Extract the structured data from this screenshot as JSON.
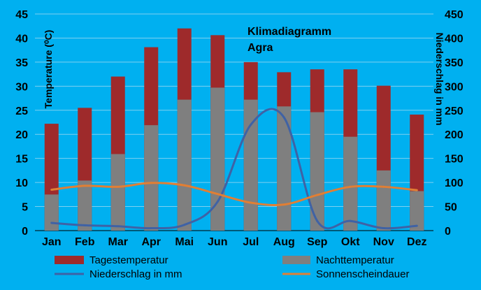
{
  "chart_data": {
    "type": "bar",
    "title": "Klimadiagramm",
    "subtitle": "Agra",
    "categories": [
      "Jan",
      "Feb",
      "Mar",
      "Apr",
      "Mai",
      "Jun",
      "Jul",
      "Aug",
      "Sep",
      "Okt",
      "Nov",
      "Dez"
    ],
    "ylabel_left": "Temperature (⁰C)",
    "ylabel_right": "Niederschlag in mm",
    "ylim_left": [
      0,
      45
    ],
    "ylim_right": [
      0,
      450
    ],
    "yticks_left": [
      "0",
      "5",
      "10",
      "15",
      "20",
      "25",
      "30",
      "35",
      "40",
      "45"
    ],
    "yticks_right": [
      "0",
      "50",
      "100",
      "150",
      "200",
      "250",
      "300",
      "350",
      "400",
      "450"
    ],
    "grid": true,
    "legend_position": "bottom",
    "series": [
      {
        "name": "Tagestemperatur",
        "kind": "bar",
        "axis": "left",
        "color": "#9e2a2b",
        "values": [
          22.2,
          25.5,
          32,
          38.1,
          42,
          40.6,
          35,
          32.9,
          33.5,
          33.5,
          30.1,
          24.1
        ]
      },
      {
        "name": "Nachttemperatur",
        "kind": "bar",
        "axis": "left",
        "color": "#7f7f7f",
        "values": [
          7.5,
          10.4,
          15.9,
          21.9,
          27.2,
          29.7,
          27.2,
          25.8,
          24.6,
          19.5,
          12.5,
          8.2
        ]
      },
      {
        "name": "Niederschlag in mm",
        "kind": "line",
        "axis": "right",
        "color": "#3f62a5",
        "values": [
          16,
          11,
          9,
          5,
          12,
          60,
          220,
          235,
          20,
          20,
          5,
          10
        ]
      },
      {
        "name": "Sonnenscheindauer",
        "kind": "line",
        "axis": "right",
        "color": "#e17f34",
        "values": [
          85,
          93,
          91,
          99,
          94,
          76,
          58,
          54,
          74,
          91,
          91,
          84
        ]
      }
    ],
    "colors": {
      "background": "#00b0f0",
      "gridline": "#7fd0f0",
      "axis_text": "#000000"
    }
  }
}
